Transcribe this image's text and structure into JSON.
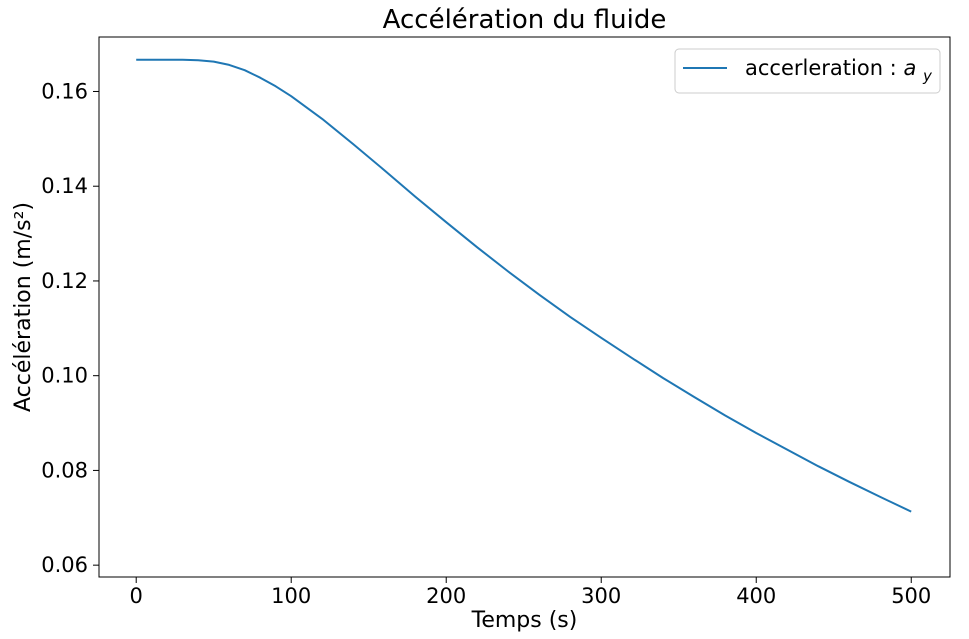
{
  "chart_data": {
    "type": "line",
    "title": "Accélération du fluide",
    "xlabel": "Temps (s)",
    "ylabel": "Accélération (m/s²)",
    "xlim": [
      -24,
      525
    ],
    "ylim": [
      0.0575,
      0.1715
    ],
    "xticks": [
      0,
      100,
      200,
      300,
      400,
      500
    ],
    "yticks": [
      0.06,
      0.08,
      0.1,
      0.12,
      0.14,
      0.16
    ],
    "xtick_labels": [
      "0",
      "100",
      "200",
      "300",
      "400",
      "500"
    ],
    "ytick_labels": [
      "0.06",
      "0.08",
      "0.10",
      "0.12",
      "0.14",
      "0.16"
    ],
    "grid": false,
    "legend_position": "top-right",
    "series": [
      {
        "name": "accerleration :",
        "name_math_base": "a",
        "name_math_sub": "y",
        "color": "#1f77b4",
        "x": [
          0,
          10,
          20,
          30,
          40,
          50,
          60,
          70,
          80,
          90,
          100,
          120,
          140,
          160,
          180,
          200,
          220,
          240,
          260,
          280,
          300,
          320,
          340,
          360,
          380,
          400,
          420,
          440,
          460,
          480,
          500
        ],
        "values": [
          0.1667,
          0.1667,
          0.1667,
          0.1667,
          0.1666,
          0.1663,
          0.1656,
          0.1645,
          0.1629,
          0.1611,
          0.159,
          0.1542,
          0.1489,
          0.1434,
          0.1378,
          0.1324,
          0.1271,
          0.122,
          0.1171,
          0.1124,
          0.108,
          0.1037,
          0.0995,
          0.0955,
          0.0916,
          0.0879,
          0.0844,
          0.0809,
          0.0776,
          0.0744,
          0.0713
        ]
      }
    ]
  }
}
